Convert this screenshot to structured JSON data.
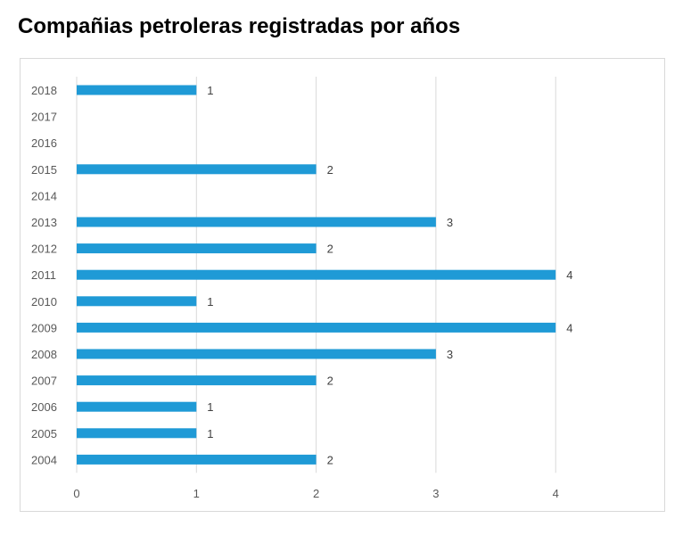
{
  "chart_data": {
    "type": "bar",
    "orientation": "horizontal",
    "title": "Compañias petroleras registradas por años",
    "categories": [
      "2018",
      "2017",
      "2016",
      "2015",
      "2014",
      "2013",
      "2012",
      "2011",
      "2010",
      "2009",
      "2008",
      "2007",
      "2006",
      "2005",
      "2004"
    ],
    "values": [
      1,
      null,
      null,
      2,
      null,
      3,
      2,
      4,
      1,
      4,
      3,
      2,
      1,
      1,
      2
    ],
    "x_ticks": [
      "0",
      "1",
      "2",
      "3",
      "4"
    ],
    "xlim": [
      0,
      4.85
    ],
    "xlabel": "",
    "ylabel": "",
    "grid": "vertical",
    "legend": "none",
    "data_labels": true,
    "colors": {
      "bar": "#1f9ad6",
      "grid": "#d9d9d9",
      "axis_text": "#595959",
      "label_text": "#404040"
    }
  }
}
